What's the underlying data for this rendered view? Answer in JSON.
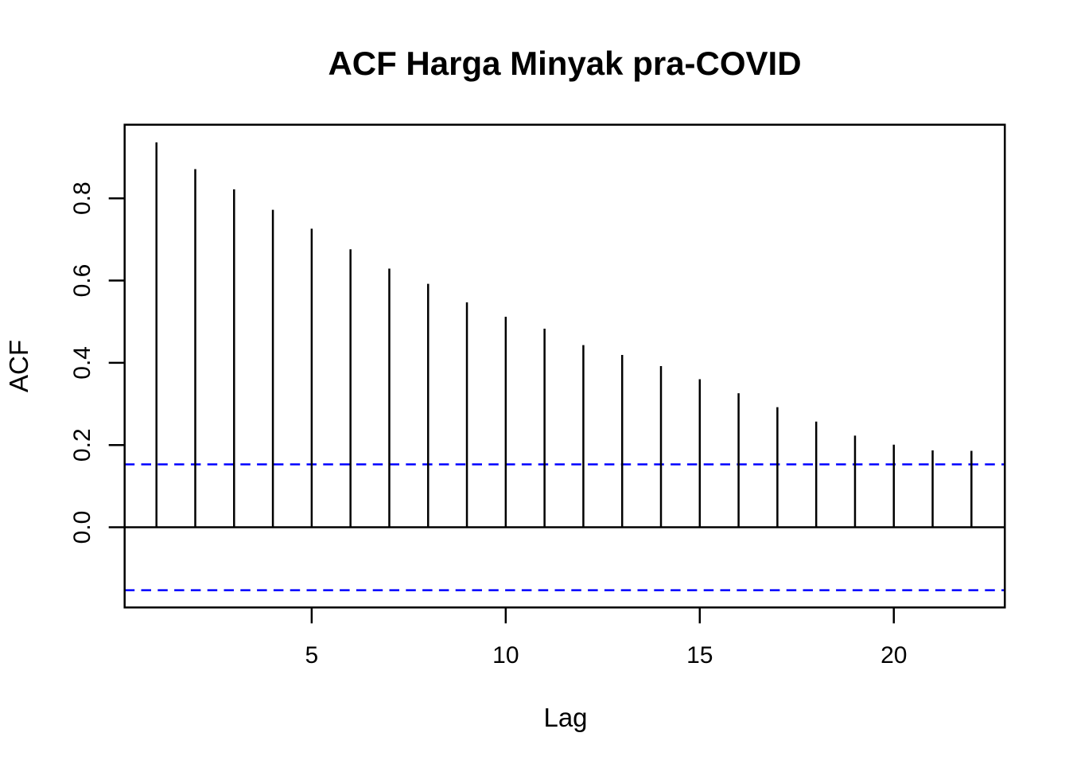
{
  "figure": {
    "background_color": "#ffffff"
  },
  "chart_data": {
    "type": "bar",
    "subtype": "acf-stem-plot",
    "title": "ACF Harga Minyak pra-COVID",
    "xlabel": "Lag",
    "ylabel": "ACF",
    "x": [
      1,
      2,
      3,
      4,
      5,
      6,
      7,
      8,
      9,
      10,
      11,
      12,
      13,
      14,
      15,
      16,
      17,
      18,
      19,
      20,
      21,
      22
    ],
    "values": [
      0.936,
      0.871,
      0.822,
      0.772,
      0.726,
      0.676,
      0.629,
      0.592,
      0.547,
      0.512,
      0.483,
      0.443,
      0.419,
      0.392,
      0.36,
      0.326,
      0.292,
      0.257,
      0.223,
      0.201,
      0.187,
      0.186
    ],
    "confidence_interval": {
      "upper": 0.153,
      "lower": -0.153,
      "line_style": "dashed",
      "color": "#0000ff"
    },
    "xlim": [
      0.18,
      22.86
    ],
    "ylim": [
      -0.195,
      0.979
    ],
    "x_ticks": [
      5,
      10,
      15,
      20
    ],
    "x_tick_labels": [
      "5",
      "10",
      "15",
      "20"
    ],
    "y_ticks": [
      0.0,
      0.2,
      0.4,
      0.6,
      0.8
    ],
    "y_tick_labels": [
      "0.0",
      "0.2",
      "0.4",
      "0.6",
      "0.8"
    ],
    "zero_line": 0,
    "grid": "off",
    "legend": "none",
    "bar_color": "#000000",
    "axis_color": "#000000"
  }
}
